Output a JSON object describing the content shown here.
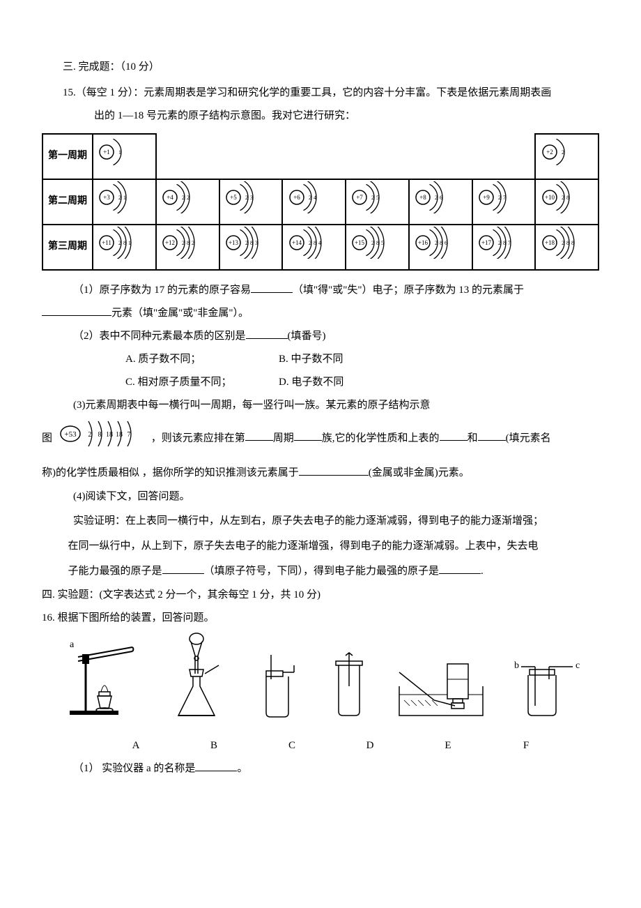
{
  "section3": {
    "title": "三. 完成题：（10 分）",
    "q15": {
      "intro_line1": "15.（每空 1 分）：元素周期表是学习和研究化学的重要工具，它的内容十分丰富。下表是依据元素周期表画",
      "intro_line2": "出的 1—18 号元素的原子结构示意图。我对它进行研究：",
      "table": {
        "rows": [
          {
            "label": "第一周期",
            "atoms": [
              {
                "nucleus": "+1",
                "shells": [
                  1
                ]
              },
              null,
              null,
              null,
              null,
              null,
              null,
              {
                "nucleus": "+2",
                "shells": [
                  2
                ]
              }
            ]
          },
          {
            "label": "第二周期",
            "atoms": [
              {
                "nucleus": "+3",
                "shells": [
                  2,
                  1
                ]
              },
              {
                "nucleus": "+4",
                "shells": [
                  2,
                  2
                ]
              },
              {
                "nucleus": "+5",
                "shells": [
                  2,
                  3
                ]
              },
              {
                "nucleus": "+6",
                "shells": [
                  2,
                  4
                ]
              },
              {
                "nucleus": "+7",
                "shells": [
                  2,
                  5
                ]
              },
              {
                "nucleus": "+8",
                "shells": [
                  2,
                  6
                ]
              },
              {
                "nucleus": "+9",
                "shells": [
                  2,
                  7
                ]
              },
              {
                "nucleus": "+10",
                "shells": [
                  2,
                  8
                ]
              }
            ]
          },
          {
            "label": "第三周期",
            "atoms": [
              {
                "nucleus": "+11",
                "shells": [
                  2,
                  8,
                  1
                ]
              },
              {
                "nucleus": "+12",
                "shells": [
                  2,
                  8,
                  2
                ]
              },
              {
                "nucleus": "+13",
                "shells": [
                  2,
                  8,
                  3
                ]
              },
              {
                "nucleus": "+14",
                "shells": [
                  2,
                  8,
                  4
                ]
              },
              {
                "nucleus": "+15",
                "shells": [
                  2,
                  8,
                  5
                ]
              },
              {
                "nucleus": "+16",
                "shells": [
                  2,
                  8,
                  6
                ]
              },
              {
                "nucleus": "+17",
                "shells": [
                  2,
                  8,
                  7
                ]
              },
              {
                "nucleus": "+18",
                "shells": [
                  2,
                  8,
                  8
                ]
              }
            ]
          }
        ]
      },
      "sub1_a": "（1）原子序数为 17 的元素的原子容易",
      "sub1_b": "（填\"得\"或\"失\"）电子；原子序数为 13 的元素属于",
      "sub1_c": "元素（填\"金属\"或\"非金属\"）。",
      "sub2": "（2）表中不同种元素最本质的区别是",
      "sub2_hint": "(填番号)",
      "opts": {
        "A": "A. 质子数不同；",
        "B": "B. 中子数不同",
        "C": "C. 相对原子质量不同；",
        "D": "D. 电子数不同"
      },
      "sub3": "(3)元素周期表中每一横行叫一周期，每一竖行叫一族。某元素的原子结构示意",
      "atom53": {
        "nucleus": "+53",
        "shells": [
          2,
          8,
          18,
          18,
          7
        ]
      },
      "sub3_line2_a": "图",
      "sub3_line2_b": "，则该元素应排在第",
      "sub3_line2_c": "周期",
      "sub3_line2_d": "族,它的化学性质和上表的",
      "sub3_line2_e": "和",
      "sub3_line2_f": "(填元素名",
      "sub3_line3_a": "称)的化学性质最相似 ，据你所学的知识推测该元素属于",
      "sub3_line3_b": "(金属或非金属)元素。",
      "sub4_h": "(4)阅读下文，回答问题。",
      "sub4_p1": "实验证明：在上表同一横行中，从左到右，原子失去电子的能力逐渐减弱，得到电子的能力逐渐增强；",
      "sub4_p2": "在同一纵行中，从上到下，原子失去电子的能力逐渐增强，得到电子的能力逐渐减弱。上表中，失去电",
      "sub4_p3_a": "子能力最强的原子是",
      "sub4_p3_b": "（填原子符号，下同），得到电子能力最强的原子是",
      "sub4_p3_c": "."
    }
  },
  "section4": {
    "title": "四. 实验题：(文字表达式 2 分一个，其余每空 1 分，共 10 分)",
    "q16": {
      "intro": "16. 根据下图所给的装置，回答问题。",
      "labels": [
        "A",
        "B",
        "C",
        "D",
        "E",
        "F"
      ],
      "port_a": "a",
      "port_b": "b",
      "port_c": "c",
      "sub1_a": "（1） 实验仪器 a 的名称是",
      "sub1_b": "。"
    }
  }
}
